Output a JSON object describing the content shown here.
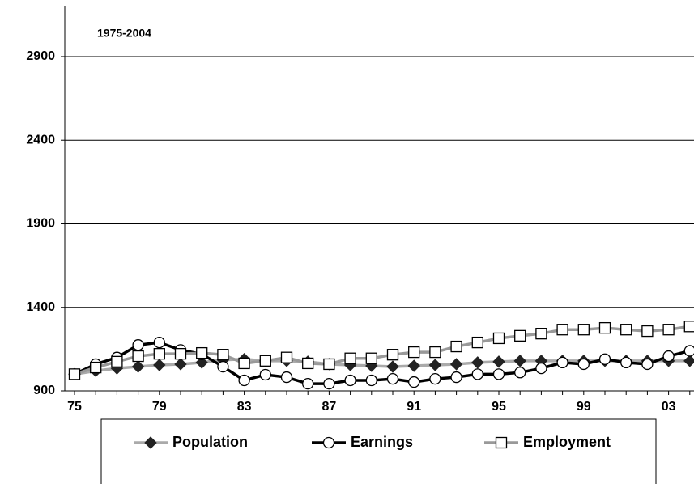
{
  "chart_data": {
    "type": "line",
    "annotation": "1975-2004",
    "categories": [
      "75",
      null,
      null,
      null,
      "79",
      null,
      null,
      null,
      "83",
      null,
      null,
      null,
      "87",
      null,
      null,
      null,
      "91",
      null,
      null,
      null,
      "95",
      null,
      null,
      null,
      "99",
      null,
      null,
      null,
      "03",
      null
    ],
    "series": [
      {
        "name": "Population",
        "color": "#aaaaaa",
        "marker": "diamond",
        "values": [
          1000,
          1020,
          1035,
          1045,
          1055,
          1060,
          1070,
          1085,
          1090,
          1080,
          1080,
          1075,
          1060,
          1055,
          1050,
          1045,
          1050,
          1055,
          1060,
          1070,
          1075,
          1080,
          1080,
          1080,
          1080,
          1080,
          1080,
          1080,
          1080,
          1080
        ]
      },
      {
        "name": "Earnings",
        "color": "#000000",
        "marker": "circle",
        "values": [
          1000,
          1060,
          1100,
          1175,
          1190,
          1145,
          1120,
          1045,
          963,
          997,
          982,
          943,
          943,
          963,
          963,
          972,
          953,
          972,
          982,
          1000,
          1000,
          1010,
          1035,
          1070,
          1060,
          1090,
          1070,
          1060,
          1108,
          1140
        ]
      },
      {
        "name": "Employment",
        "color": "#999999",
        "marker": "square",
        "values": [
          1000,
          1040,
          1075,
          1108,
          1122,
          1122,
          1127,
          1117,
          1065,
          1080,
          1100,
          1065,
          1060,
          1095,
          1095,
          1117,
          1132,
          1132,
          1166,
          1190,
          1215,
          1230,
          1243,
          1267,
          1267,
          1277,
          1267,
          1258,
          1267,
          1286
        ]
      }
    ],
    "ylim": [
      900,
      3200
    ],
    "yticks": [
      900,
      1400,
      1900,
      2400,
      2900
    ],
    "grid": true
  }
}
